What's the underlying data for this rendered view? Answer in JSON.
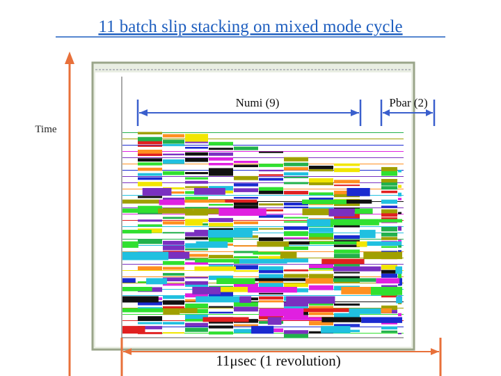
{
  "title": "11 batch slip stacking on mixed mode cycle",
  "labels": {
    "numi": "Numi (9)",
    "pbar": "Pbar (2)",
    "time": "Time",
    "revolution": "11μsec (1 revolution)"
  }
}
